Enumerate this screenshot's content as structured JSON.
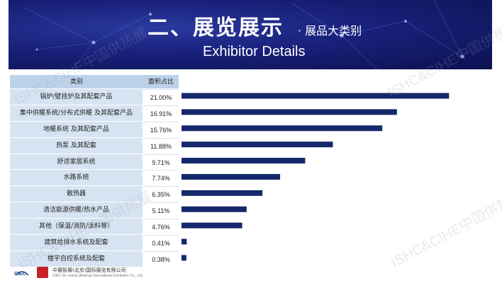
{
  "header": {
    "title_main": "二、展览展示",
    "title_sub": "· 展品大类别",
    "title_en": "Exhibitor Details"
  },
  "table": {
    "col1_header": "类别",
    "col2_header": "面积占比"
  },
  "chart_data": {
    "type": "bar",
    "orientation": "horizontal",
    "categories": [
      "锅炉/壁挂炉及其配套产品",
      "集中供暖系统/分布式供暖 及其配套产品",
      "地暖系统 及其配套产品",
      "热泵 及其配套",
      "舒适家居系统",
      "水路系统",
      "散热器",
      "清洁能源供暖/热水产品",
      "其他（保温/消防/涂料等）",
      "建筑给排水系统及配套",
      "楼宇自控系统及配套"
    ],
    "values": [
      21.0,
      16.91,
      15.76,
      11.88,
      9.71,
      7.74,
      6.35,
      5.11,
      4.76,
      0.41,
      0.38
    ],
    "labels": [
      "21.00%",
      "16.91%",
      "15.76%",
      "11.88%",
      "9.71%",
      "7.74%",
      "6.35%",
      "5.11%",
      "4.76%",
      "0.41%",
      "0.38%"
    ],
    "bar_color": "#14286b",
    "xlim": [
      0,
      24
    ]
  },
  "watermark": "ISHC&CIHE中国供热展",
  "footer": {
    "logo_text": "CIEC",
    "company_cn": "中展智展(北京)国际展览有限公司",
    "company_en": "CIEC GL eventy (Beijing) International Exhibition Co., Ltd."
  },
  "colors": {
    "banner_dark": "#0c114f",
    "table_header": "#bcd2ea",
    "table_cell": "#d6e3f2"
  }
}
